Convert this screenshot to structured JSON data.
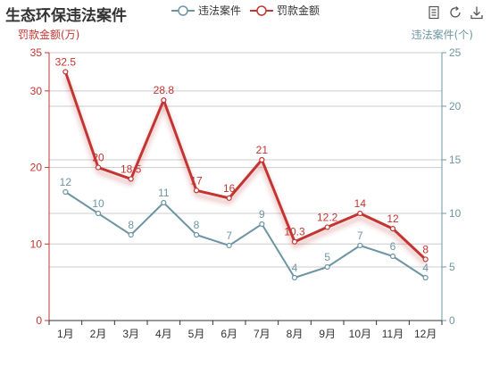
{
  "chart_data": {
    "type": "line",
    "title": "生态环保违法案件",
    "categories": [
      "1月",
      "2月",
      "3月",
      "4月",
      "5月",
      "6月",
      "7月",
      "8月",
      "9月",
      "10月",
      "11月",
      "12月"
    ],
    "y_left": {
      "label": "罚款金额(万)",
      "ylim": [
        0,
        35
      ],
      "ticks": [
        0,
        10,
        20,
        30,
        35
      ],
      "color": "#c23531"
    },
    "y_right": {
      "label": "违法案件(个)",
      "ylim": [
        0,
        25
      ],
      "ticks": [
        0,
        5,
        10,
        15,
        20,
        25
      ],
      "color": "#6e95a3"
    },
    "series": [
      {
        "name": "违法案件",
        "axis": "right",
        "color": "#6e95a3",
        "values": [
          12,
          10,
          8,
          11,
          8,
          7,
          9,
          4,
          5,
          7,
          6,
          4
        ]
      },
      {
        "name": "罚款金额",
        "axis": "left",
        "color": "#c23531",
        "values": [
          32.5,
          20,
          18.5,
          28.8,
          17,
          16,
          21,
          10.3,
          12.2,
          14,
          12,
          8
        ]
      }
    ],
    "legend_position": "top-center",
    "grid": true
  },
  "toolbox": {
    "icons": [
      "data-view-icon",
      "restore-icon",
      "save-image-icon"
    ]
  }
}
